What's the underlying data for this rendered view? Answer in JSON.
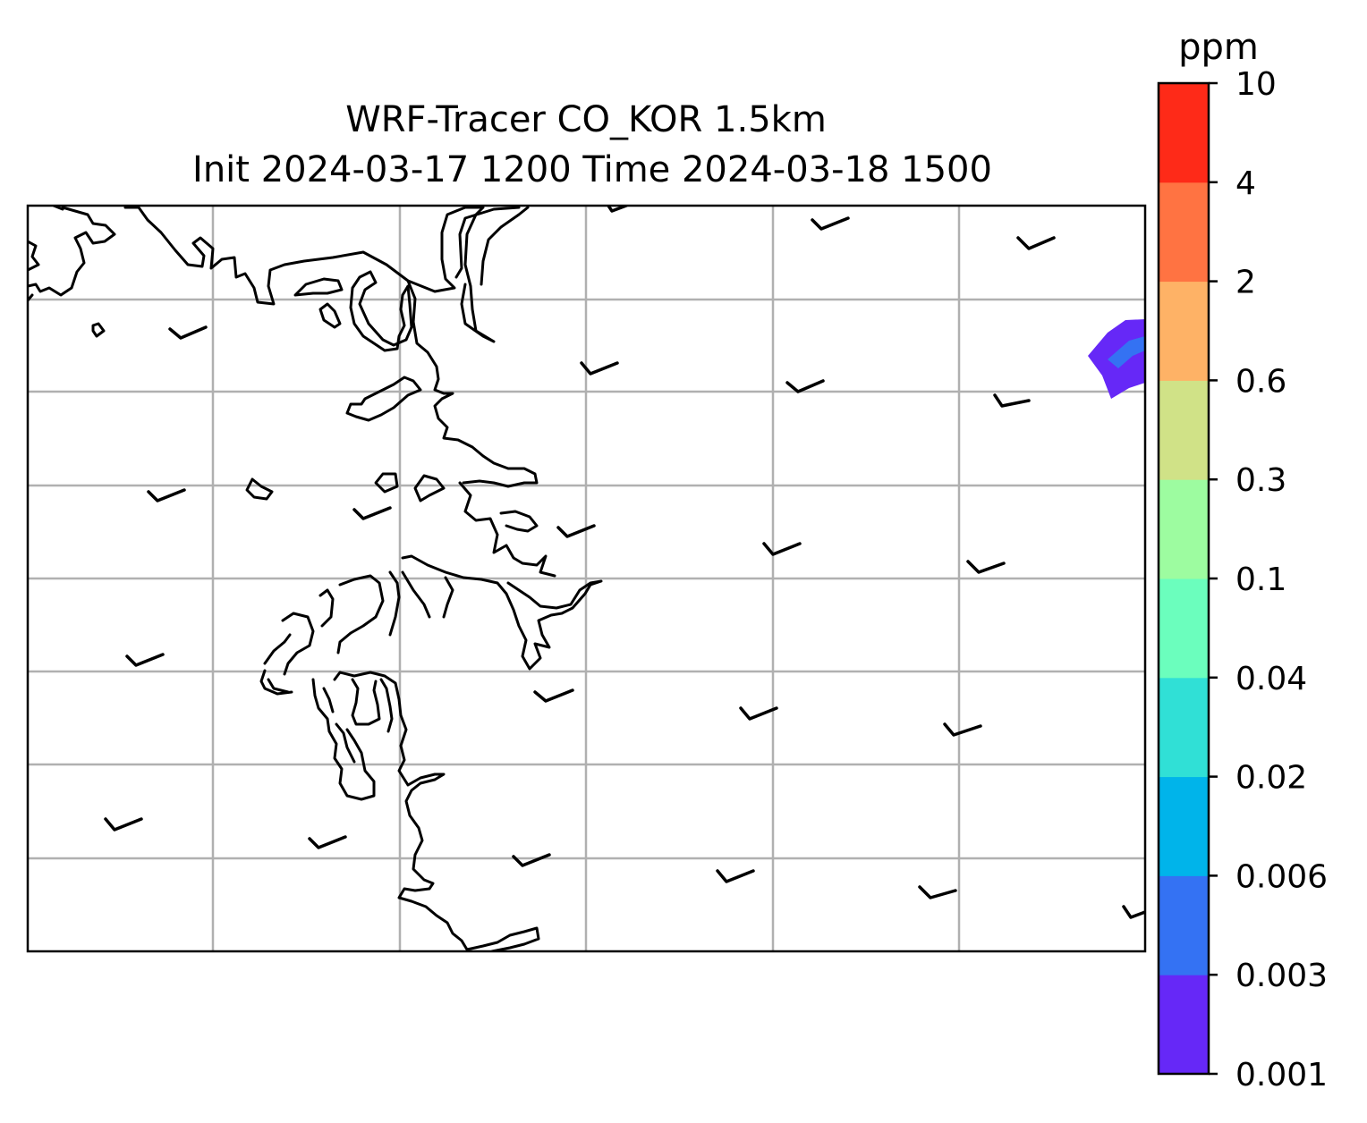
{
  "title": {
    "line1": "WRF-Tracer CO_KOR 1.5km",
    "line2": "Init 2024-03-17 1200 Time 2024-03-18 1500"
  },
  "colorbar": {
    "unit": "ppm",
    "levels": [
      "0.001",
      "0.003",
      "0.006",
      "0.02",
      "0.04",
      "0.1",
      "0.3",
      "0.6",
      "2",
      "4",
      "10"
    ],
    "colors": [
      "#6628f7",
      "#3472f3",
      "#00b4ea",
      "#30e0d6",
      "#6bfebd",
      "#9dfca0",
      "#d0e287",
      "#feb266",
      "#ff7342",
      "#fe2a18"
    ]
  },
  "map": {
    "features": [
      "coastline",
      "gridlines",
      "wind-barbs",
      "co-concentration-contour"
    ],
    "grid": true,
    "wind_barb_count": 29,
    "plume": {
      "location": "east edge",
      "outer_level": "0.001",
      "inner_level": "0.003"
    }
  }
}
